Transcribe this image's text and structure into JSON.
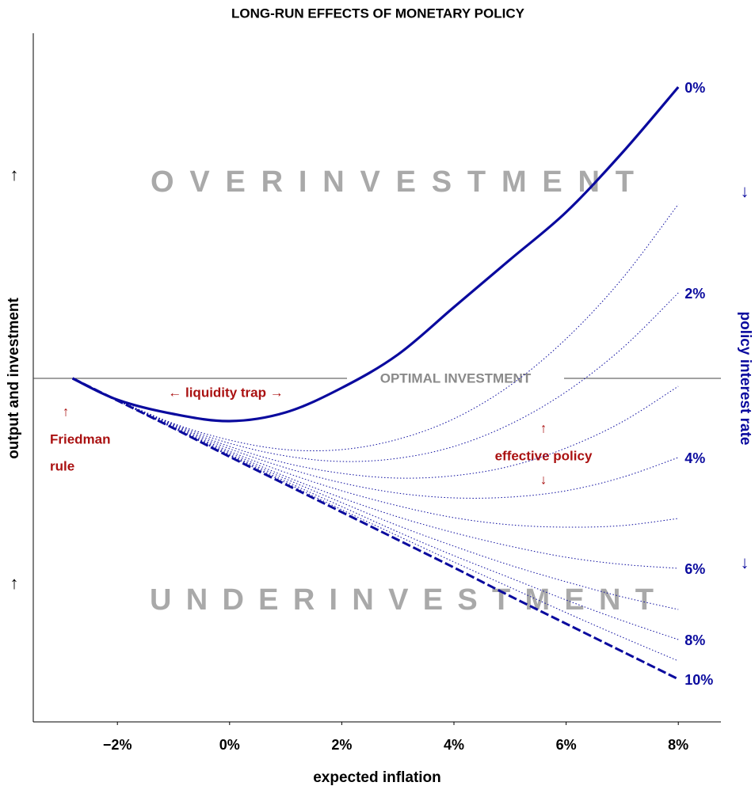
{
  "chart_data": {
    "type": "line",
    "title": "LONG-RUN EFFECTS OF MONETARY POLICY",
    "x_label": "expected inflation",
    "y_label": "output and investment",
    "y2_label": "policy interest rate",
    "x": [
      -2.8,
      -2,
      -1,
      0,
      1,
      2,
      3,
      4,
      5,
      6,
      7,
      8
    ],
    "xlim": [
      -3.5,
      8.76
    ],
    "ylim": [
      -4.34,
      4.36
    ],
    "xticks": [
      {
        "value": -2,
        "label": "−2%"
      },
      {
        "value": 0,
        "label": "0%"
      },
      {
        "value": 2,
        "label": "2%"
      },
      {
        "value": 4,
        "label": "4%"
      },
      {
        "value": 6,
        "label": "6%"
      },
      {
        "value": 8,
        "label": "8%"
      }
    ],
    "reference_line": {
      "value": 0,
      "label": "OPTIMAL INVESTMENT"
    },
    "series": [
      {
        "name": "0%",
        "color": "#0a0a9e",
        "style": "solid",
        "values": [
          0,
          -0.27,
          -0.45,
          -0.54,
          -0.43,
          -0.12,
          0.3,
          0.9,
          1.5,
          2.1,
          2.85,
          3.68
        ]
      },
      {
        "color": "#0a0a9e",
        "style": "dotted",
        "values": [
          0,
          -0.27,
          -0.57,
          -0.78,
          -0.9,
          -0.9,
          -0.77,
          -0.51,
          -0.09,
          0.5,
          1.26,
          2.2
        ]
      },
      {
        "name": "2%",
        "color": "#0a0a9e",
        "style": "dotted",
        "values": [
          0,
          -0.28,
          -0.58,
          -0.82,
          -0.98,
          -1.05,
          -1.01,
          -0.86,
          -0.58,
          -0.17,
          0.38,
          1.08
        ]
      },
      {
        "color": "#0a0a9e",
        "style": "dotted",
        "values": [
          0,
          -0.28,
          -0.59,
          -0.86,
          -1.07,
          -1.2,
          -1.26,
          -1.23,
          -1.11,
          -0.88,
          -0.55,
          -0.1
        ]
      },
      {
        "name": "4%",
        "color": "#0a0a9e",
        "style": "dotted",
        "values": [
          0,
          -0.28,
          -0.6,
          -0.89,
          -1.13,
          -1.32,
          -1.45,
          -1.51,
          -1.5,
          -1.42,
          -1.25,
          -1.0
        ]
      },
      {
        "color": "#0a0a9e",
        "style": "dotted",
        "values": [
          0,
          -0.28,
          -0.61,
          -0.92,
          -1.19,
          -1.42,
          -1.61,
          -1.76,
          -1.85,
          -1.88,
          -1.86,
          -1.77
        ]
      },
      {
        "name": "6%",
        "color": "#0a0a9e",
        "style": "dotted",
        "values": [
          0,
          -0.28,
          -0.62,
          -0.94,
          -1.24,
          -1.51,
          -1.75,
          -1.95,
          -2.12,
          -2.26,
          -2.35,
          -2.4
        ]
      },
      {
        "color": "#0a0a9e",
        "style": "dotted",
        "values": [
          0,
          -0.28,
          -0.62,
          -0.96,
          -1.27,
          -1.57,
          -1.86,
          -2.12,
          -2.36,
          -2.57,
          -2.76,
          -2.92
        ]
      },
      {
        "name": "8%",
        "color": "#0a0a9e",
        "style": "dotted",
        "values": [
          0,
          -0.28,
          -0.63,
          -0.97,
          -1.3,
          -1.62,
          -1.94,
          -2.24,
          -2.52,
          -2.8,
          -3.06,
          -3.3
        ]
      },
      {
        "color": "#0a0a9e",
        "style": "dotted",
        "values": [
          0,
          -0.28,
          -0.63,
          -0.98,
          -1.32,
          -1.66,
          -1.99,
          -2.32,
          -2.64,
          -2.96,
          -3.27,
          -3.57
        ]
      },
      {
        "name": "10%",
        "color": "#0a0a9e",
        "style": "dashed",
        "values": [
          0,
          -0.28,
          -0.63,
          -0.99,
          -1.34,
          -1.69,
          -2.04,
          -2.39,
          -2.75,
          -3.1,
          -3.45,
          -3.8
        ]
      }
    ],
    "annotations": [
      "OVERINVESTMENT",
      "UNDERINVESTMENT",
      "← liquidity trap →",
      "↑",
      "Friedman",
      "rule",
      "↑",
      "effective policy",
      "↓",
      "↑",
      "↑",
      "↓",
      "↓"
    ]
  }
}
